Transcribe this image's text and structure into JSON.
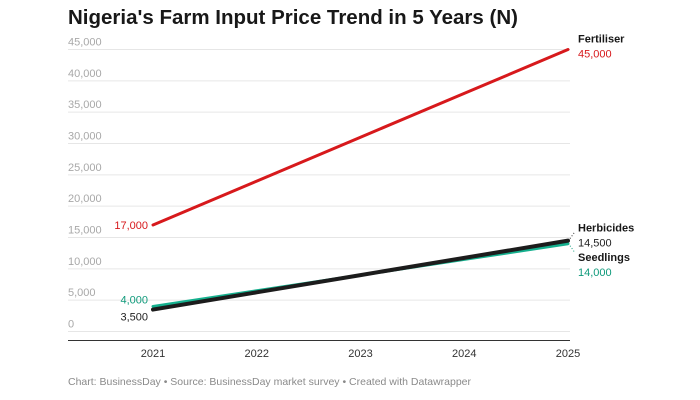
{
  "chart_data": {
    "type": "line",
    "title": "Nigeria's Farm Input Price Trend in 5 Years (N)",
    "x": [
      "2021",
      "2022",
      "2023",
      "2024",
      "2025"
    ],
    "xlabel": "",
    "ylabel": "",
    "ylim": [
      0,
      45000
    ],
    "yticks": [
      0,
      5000,
      10000,
      15000,
      20000,
      25000,
      30000,
      35000,
      40000,
      45000
    ],
    "ytick_labels": [
      "0",
      "5,000",
      "10,000",
      "15,000",
      "20,000",
      "25,000",
      "30,000",
      "35,000",
      "40,000",
      "45,000"
    ],
    "grid": true,
    "series": [
      {
        "name": "Fertiliser",
        "color": "#d7191c",
        "values": [
          17000,
          24000,
          31000,
          38000,
          45000
        ],
        "start_label": "17,000",
        "end_label": "45,000"
      },
      {
        "name": "Seedlings",
        "color": "#15b08e",
        "values": [
          4000,
          6500,
          9000,
          11500,
          14000
        ],
        "start_label": "4,000",
        "end_label": "14,000"
      },
      {
        "name": "Herbicides",
        "color": "#1c1c1c",
        "values": [
          3500,
          6250,
          9000,
          11750,
          14500
        ],
        "start_label": "3,500",
        "end_label": "14,500"
      }
    ]
  },
  "footer": {
    "text": "Chart: BusinessDay • Source: BusinessDay market survey • Created with Datawrapper"
  }
}
